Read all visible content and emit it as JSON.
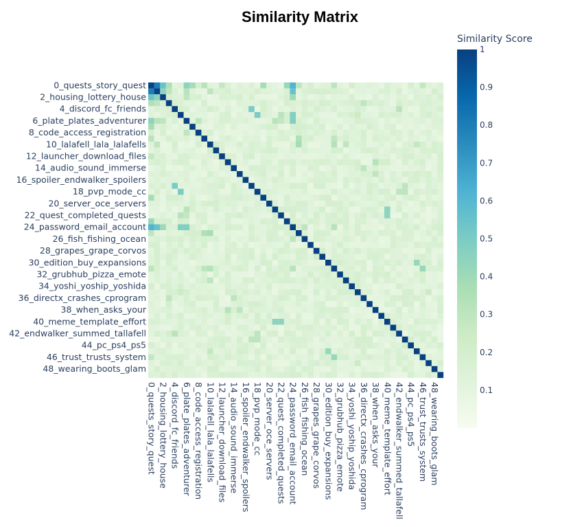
{
  "chart_data": {
    "type": "heatmap",
    "title": "Similarity Matrix",
    "colorbar": {
      "title": "Similarity Score",
      "range": [
        0,
        1
      ],
      "ticks": [
        "0.1",
        "0.2",
        "0.3",
        "0.4",
        "0.5",
        "0.6",
        "0.7",
        "0.8",
        "0.9",
        "1"
      ],
      "colorscale": [
        "#f7fcf0",
        "#e0f3db",
        "#ccebc5",
        "#a8ddb5",
        "#7bccc4",
        "#4eb3d3",
        "#2b8cbe",
        "#0868ac",
        "#084081"
      ]
    },
    "n": 50,
    "labels": [
      "0_quests_story_quest",
      "2_housing_lottery_house",
      "4_discord_fc_friends",
      "6_plate_plates_adventurer",
      "8_code_access_registration",
      "10_lalafell_lala_lalafells",
      "12_launcher_download_files",
      "14_audio_sound_immerse",
      "16_spoiler_endwalker_spoilers",
      "18_pvp_mode_cc",
      "20_server_oce_servers",
      "22_quest_completed_quests",
      "24_password_email_account",
      "26_fish_fishing_ocean",
      "28_grapes_grape_corvos",
      "30_edition_buy_expansions",
      "32_grubhub_pizza_emote",
      "34_yoshi_yoship_yoshida",
      "36_directx_crashes_cprogram",
      "38_when_asks_your",
      "40_meme_template_effort",
      "42_endwalker_summed_tallafell",
      "44_pc_ps4_ps5",
      "46_trust_trusts_system",
      "48_wearing_boots_glam"
    ],
    "label_step": 2,
    "diagonal": 1.0,
    "background_range": [
      0.08,
      0.2
    ],
    "highlights": [
      {
        "a": 0,
        "b": 1,
        "v": 0.8
      },
      {
        "a": 0,
        "b": 2,
        "v": 0.55
      },
      {
        "a": 0,
        "b": 3,
        "v": 0.35
      },
      {
        "a": 0,
        "b": 6,
        "v": 0.45
      },
      {
        "a": 0,
        "b": 7,
        "v": 0.38
      },
      {
        "a": 0,
        "b": 9,
        "v": 0.32
      },
      {
        "a": 0,
        "b": 12,
        "v": 0.28
      },
      {
        "a": 0,
        "b": 19,
        "v": 0.38
      },
      {
        "a": 0,
        "b": 23,
        "v": 0.42
      },
      {
        "a": 0,
        "b": 24,
        "v": 0.62
      },
      {
        "a": 0,
        "b": 25,
        "v": 0.3
      },
      {
        "a": 0,
        "b": 31,
        "v": 0.3
      },
      {
        "a": 0,
        "b": 46,
        "v": 0.28
      },
      {
        "a": 1,
        "b": 2,
        "v": 0.45
      },
      {
        "a": 1,
        "b": 3,
        "v": 0.3
      },
      {
        "a": 1,
        "b": 6,
        "v": 0.32
      },
      {
        "a": 1,
        "b": 10,
        "v": 0.3
      },
      {
        "a": 1,
        "b": 24,
        "v": 0.52
      },
      {
        "a": 2,
        "b": 24,
        "v": 0.4
      },
      {
        "a": 2,
        "b": 6,
        "v": 0.3
      },
      {
        "a": 4,
        "b": 17,
        "v": 0.5
      },
      {
        "a": 4,
        "b": 42,
        "v": 0.28
      },
      {
        "a": 5,
        "b": 35,
        "v": 0.25
      },
      {
        "a": 6,
        "b": 24,
        "v": 0.48
      },
      {
        "a": 6,
        "b": 21,
        "v": 0.32
      },
      {
        "a": 6,
        "b": 22,
        "v": 0.28
      },
      {
        "a": 6,
        "b": 8,
        "v": 0.3
      },
      {
        "a": 9,
        "b": 25,
        "v": 0.28
      },
      {
        "a": 10,
        "b": 25,
        "v": 0.38
      },
      {
        "a": 10,
        "b": 31,
        "v": 0.33
      },
      {
        "a": 10,
        "b": 33,
        "v": 0.3
      },
      {
        "a": 10,
        "b": 45,
        "v": 0.28
      },
      {
        "a": 14,
        "b": 36,
        "v": 0.3
      },
      {
        "a": 18,
        "b": 5,
        "v": 0.5
      },
      {
        "a": 18,
        "b": 42,
        "v": 0.3
      },
      {
        "a": 18,
        "b": 43,
        "v": 0.3
      },
      {
        "a": 21,
        "b": 40,
        "v": 0.45
      },
      {
        "a": 22,
        "b": 5,
        "v": 0.32
      },
      {
        "a": 24,
        "b": 5,
        "v": 0.48
      },
      {
        "a": 24,
        "b": 1,
        "v": 0.55
      },
      {
        "a": 24,
        "b": 26,
        "v": 0.3
      },
      {
        "a": 24,
        "b": 31,
        "v": 0.32
      },
      {
        "a": 25,
        "b": 9,
        "v": 0.35
      },
      {
        "a": 30,
        "b": 45,
        "v": 0.42
      },
      {
        "a": 31,
        "b": 9,
        "v": 0.3
      },
      {
        "a": 33,
        "b": 10,
        "v": 0.3
      },
      {
        "a": 36,
        "b": 3,
        "v": 0.3
      },
      {
        "a": 38,
        "b": 13,
        "v": 0.33
      },
      {
        "a": 38,
        "b": 15,
        "v": 0.3
      },
      {
        "a": 40,
        "b": 22,
        "v": 0.45
      },
      {
        "a": 42,
        "b": 4,
        "v": 0.32
      },
      {
        "a": 43,
        "b": 17,
        "v": 0.3
      },
      {
        "a": 46,
        "b": 31,
        "v": 0.42
      },
      {
        "a": 47,
        "b": 35,
        "v": 0.25
      }
    ]
  }
}
